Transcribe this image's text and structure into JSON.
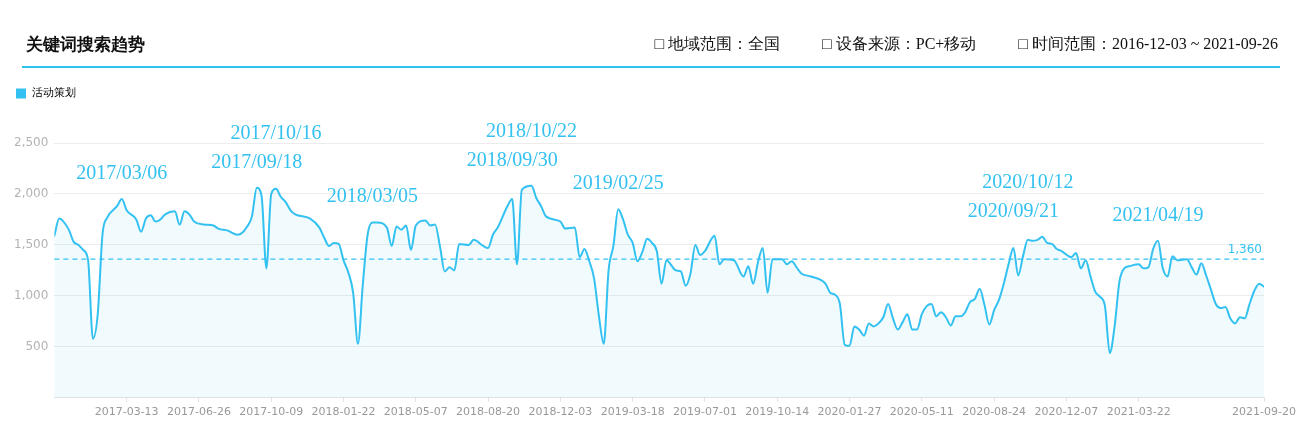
{
  "chart_data": {
    "type": "area",
    "title": "关键词搜索趋势",
    "annotations": [
      "□ 地域范围：全国",
      "□ 设备来源：PC+移动",
      "□ 时间范围：2016-12-03 ~ 2021-09-26",
      {
        "text": "2017/03/06",
        "x": "2017-03-06",
        "y": 1950
      },
      {
        "text": "2017/09/18",
        "x": "2017-09-18",
        "y": 2060
      },
      {
        "text": "2017/10/16",
        "x": "2017-10-16",
        "y": 2050
      },
      {
        "text": "2018/03/05",
        "x": "2018-03-05",
        "y": 1720
      },
      {
        "text": "2018/09/30",
        "x": "2018-09-24",
        "y": 1950
      },
      {
        "text": "2018/10/22",
        "x": "2018-10-22",
        "y": 2080
      },
      {
        "text": "2019/02/25",
        "x": "2019-02-25",
        "y": 1850
      },
      {
        "text": "2020/09/21",
        "x": "2020-09-21",
        "y": 1470
      },
      {
        "text": "2020/10/12",
        "x": "2020-10-12",
        "y": 1550
      },
      {
        "text": "2021/04/19",
        "x": "2021-04-19",
        "y": 1540
      }
    ],
    "x": [
      "2016-11-28",
      "2016-12-05",
      "2016-12-19",
      "2016-12-26",
      "2017-01-02",
      "2017-01-09",
      "2017-01-16",
      "2017-01-23",
      "2017-01-30",
      "2017-02-06",
      "2017-02-13",
      "2017-02-27",
      "2017-03-06",
      "2017-03-13",
      "2017-03-27",
      "2017-04-03",
      "2017-04-10",
      "2017-04-17",
      "2017-04-24",
      "2017-05-01",
      "2017-05-08",
      "2017-05-22",
      "2017-05-29",
      "2017-06-05",
      "2017-06-12",
      "2017-06-19",
      "2017-07-03",
      "2017-07-17",
      "2017-07-24",
      "2017-08-07",
      "2017-08-21",
      "2017-08-28",
      "2017-09-04",
      "2017-09-11",
      "2017-09-18",
      "2017-09-25",
      "2017-10-02",
      "2017-10-09",
      "2017-10-16",
      "2017-10-23",
      "2017-10-30",
      "2017-11-06",
      "2017-11-13",
      "2017-12-04",
      "2017-12-18",
      "2017-12-25",
      "2018-01-01",
      "2018-01-08",
      "2018-01-15",
      "2018-01-22",
      "2018-01-29",
      "2018-02-05",
      "2018-02-12",
      "2018-02-19",
      "2018-02-26",
      "2018-03-05",
      "2018-03-12",
      "2018-03-26",
      "2018-04-02",
      "2018-04-09",
      "2018-04-16",
      "2018-04-23",
      "2018-04-30",
      "2018-05-07",
      "2018-05-21",
      "2018-05-28",
      "2018-06-04",
      "2018-06-11",
      "2018-06-18",
      "2018-06-25",
      "2018-07-02",
      "2018-07-09",
      "2018-07-23",
      "2018-07-30",
      "2018-08-13",
      "2018-08-20",
      "2018-08-27",
      "2018-09-03",
      "2018-09-17",
      "2018-09-24",
      "2018-10-01",
      "2018-10-08",
      "2018-10-22",
      "2018-10-29",
      "2018-11-05",
      "2018-11-12",
      "2018-12-03",
      "2018-12-10",
      "2018-12-24",
      "2018-12-31",
      "2019-01-07",
      "2019-01-14",
      "2019-01-21",
      "2019-01-28",
      "2019-02-04",
      "2019-02-11",
      "2019-02-18",
      "2019-02-25",
      "2019-03-04",
      "2019-03-11",
      "2019-03-18",
      "2019-03-25",
      "2019-04-01",
      "2019-04-08",
      "2019-04-15",
      "2019-04-22",
      "2019-04-29",
      "2019-05-06",
      "2019-05-20",
      "2019-05-27",
      "2019-06-03",
      "2019-06-10",
      "2019-06-17",
      "2019-06-24",
      "2019-07-01",
      "2019-07-15",
      "2019-07-22",
      "2019-07-29",
      "2019-08-12",
      "2019-08-26",
      "2019-09-02",
      "2019-09-09",
      "2019-09-16",
      "2019-09-23",
      "2019-09-30",
      "2019-10-07",
      "2019-10-21",
      "2019-10-28",
      "2019-11-04",
      "2019-11-11",
      "2019-11-18",
      "2019-12-02",
      "2019-12-23",
      "2019-12-30",
      "2020-01-06",
      "2020-01-13",
      "2020-01-20",
      "2020-01-27",
      "2020-02-03",
      "2020-02-10",
      "2020-02-17",
      "2020-02-24",
      "2020-03-02",
      "2020-03-09",
      "2020-03-16",
      "2020-03-23",
      "2020-03-30",
      "2020-04-06",
      "2020-04-13",
      "2020-04-20",
      "2020-04-27",
      "2020-05-04",
      "2020-05-11",
      "2020-05-18",
      "2020-05-25",
      "2020-06-01",
      "2020-06-08",
      "2020-06-15",
      "2020-06-22",
      "2020-06-29",
      "2020-07-06",
      "2020-07-13",
      "2020-07-20",
      "2020-07-27",
      "2020-08-03",
      "2020-08-10",
      "2020-08-17",
      "2020-08-24",
      "2020-08-31",
      "2020-09-07",
      "2020-09-14",
      "2020-09-21",
      "2020-09-28",
      "2020-10-05",
      "2020-10-12",
      "2020-10-19",
      "2020-10-26",
      "2020-11-02",
      "2020-11-09",
      "2020-11-16",
      "2020-11-23",
      "2020-11-30",
      "2020-12-14",
      "2020-12-21",
      "2020-12-28",
      "2021-01-04",
      "2021-01-11",
      "2021-01-18",
      "2021-01-25",
      "2021-02-01",
      "2021-02-08",
      "2021-02-15",
      "2021-02-22",
      "2021-03-01",
      "2021-03-08",
      "2021-03-22",
      "2021-03-29",
      "2021-04-05",
      "2021-04-12",
      "2021-04-19",
      "2021-04-26",
      "2021-05-03",
      "2021-05-10",
      "2021-05-17",
      "2021-05-31",
      "2021-06-07",
      "2021-06-14",
      "2021-06-21",
      "2021-06-28",
      "2021-07-05",
      "2021-07-12",
      "2021-07-19",
      "2021-07-26",
      "2021-08-02",
      "2021-08-09",
      "2021-08-16",
      "2021-08-23",
      "2021-08-30",
      "2021-09-06",
      "2021-09-13",
      "2021-09-20"
    ],
    "series": [
      {
        "name": "活动策划",
        "color": "#33c1f1",
        "values": [
          1590,
          1760,
          1650,
          1530,
          1500,
          1450,
          1350,
          580,
          820,
          1610,
          1770,
          1880,
          1950,
          1840,
          1750,
          1630,
          1760,
          1790,
          1730,
          1750,
          1800,
          1830,
          1700,
          1830,
          1800,
          1730,
          1700,
          1690,
          1660,
          1640,
          1600,
          1620,
          1680,
          1780,
          2060,
          1980,
          1270,
          2000,
          2050,
          1970,
          1920,
          1840,
          1800,
          1760,
          1670,
          1570,
          1490,
          1520,
          1510,
          1350,
          1230,
          1030,
          530,
          1110,
          1600,
          1720,
          1720,
          1670,
          1490,
          1680,
          1650,
          1690,
          1450,
          1690,
          1740,
          1690,
          1700,
          1490,
          1240,
          1280,
          1250,
          1510,
          1500,
          1550,
          1490,
          1470,
          1600,
          1670,
          1880,
          1950,
          1310,
          2040,
          2080,
          1960,
          1880,
          1780,
          1730,
          1660,
          1670,
          1380,
          1460,
          1340,
          1170,
          800,
          530,
          1250,
          1490,
          1850,
          1750,
          1600,
          1520,
          1340,
          1430,
          1560,
          1520,
          1440,
          1120,
          1350,
          1250,
          1240,
          1100,
          1220,
          1500,
          1400,
          1440,
          1590,
          1310,
          1360,
          1350,
          1190,
          1290,
          1120,
          1330,
          1470,
          1030,
          1360,
          1360,
          1310,
          1340,
          1280,
          1220,
          1190,
          1120,
          1030,
          1010,
          920,
          520,
          510,
          700,
          670,
          610,
          730,
          700,
          730,
          790,
          920,
          780,
          670,
          740,
          820,
          670,
          670,
          820,
          900,
          920,
          800,
          840,
          790,
          710,
          800,
          800,
          840,
          940,
          970,
          1070,
          910,
          720,
          860,
          960,
          1120,
          1310,
          1470,
          1200,
          1390,
          1550,
          1540,
          1550,
          1580,
          1520,
          1510,
          1460,
          1440,
          1380,
          1420,
          1270,
          1350,
          1190,
          1040,
          990,
          900,
          440,
          700,
          1140,
          1270,
          1290,
          1310,
          1270,
          1280,
          1460,
          1540,
          1270,
          1190,
          1390,
          1350,
          1360,
          1280,
          1210,
          1320,
          1200,
          1060,
          920,
          880,
          890,
          780,
          730,
          790,
          780,
          920,
          1050,
          1120,
          1090
        ]
      }
    ],
    "xlim": [
      "2016-11-28",
      "2021-09-20"
    ],
    "xticks": [
      "2017-03-13",
      "2017-06-26",
      "2017-10-09",
      "2018-01-22",
      "2018-05-07",
      "2018-08-20",
      "2018-12-03",
      "2019-03-18",
      "2019-07-01",
      "2019-10-14",
      "2020-01-27",
      "2020-05-11",
      "2020-08-24",
      "2020-12-07",
      "2021-03-22",
      "2021-09-20"
    ],
    "ylim": [
      0,
      2500
    ],
    "yticks": [
      500,
      {
        "value": 1000,
        "label": "1,000"
      },
      {
        "value": 1500,
        "label": "1,500"
      },
      {
        "value": 2000,
        "label": "2,000"
      },
      {
        "value": 2500,
        "label": "2,500"
      }
    ],
    "ref_lines": [
      {
        "axis": "y",
        "value": 1360,
        "label": "1,360",
        "color": "#33c1f1",
        "line_style": "dashed"
      }
    ],
    "grid": "y",
    "legend": "top left"
  }
}
